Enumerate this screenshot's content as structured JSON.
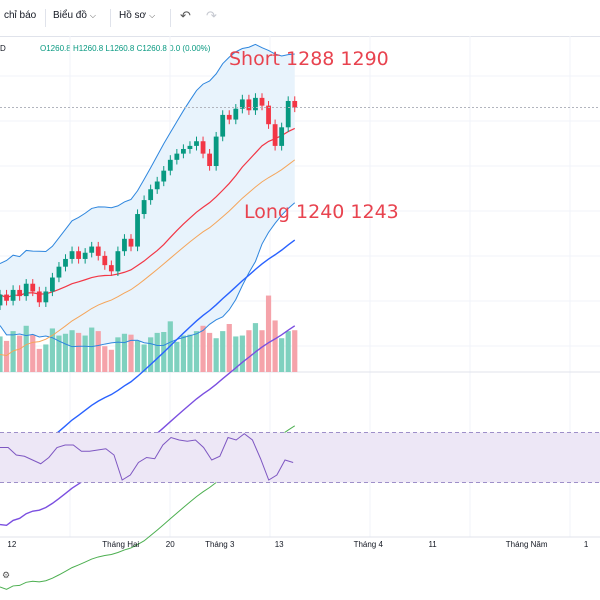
{
  "toolbar": {
    "indicators_label": "chỉ báo",
    "chart_label": "Biểu đồ",
    "profile_label": "Hồ sơ",
    "undo_icon": "undo-icon",
    "redo_icon": "redo-icon"
  },
  "legend": {
    "left_marker": "D",
    "open": "O1260.8",
    "high": "H1260.8",
    "low": "L1260.8",
    "close": "C1260.8",
    "change": "0.0 (0.00%)"
  },
  "annotations": {
    "short": "Short 1288 1290",
    "long": "Long 1240 1243"
  },
  "colors": {
    "up": "#089981",
    "down": "#f23645",
    "ma_red": "#f23645",
    "ma_orange": "#f5a55a",
    "ma_blue": "#2962ff",
    "ma_purple": "#7b4fe0",
    "ma_green": "#4caf50",
    "bollinger": "#2e86de",
    "bollinger_fill": "#e8f3fc",
    "rsi_line": "#7e57c2",
    "rsi_band": "#ede7f6"
  },
  "chart_data": {
    "type": "candlestick",
    "candles": [
      {
        "o": 1133,
        "c": 1140
      },
      {
        "o": 1140,
        "c": 1136
      },
      {
        "o": 1136,
        "c": 1143
      },
      {
        "o": 1143,
        "c": 1139
      },
      {
        "o": 1139,
        "c": 1147
      },
      {
        "o": 1147,
        "c": 1142
      },
      {
        "o": 1142,
        "c": 1135
      },
      {
        "o": 1135,
        "c": 1142
      },
      {
        "o": 1142,
        "c": 1151
      },
      {
        "o": 1151,
        "c": 1158
      },
      {
        "o": 1158,
        "c": 1163
      },
      {
        "o": 1163,
        "c": 1168
      },
      {
        "o": 1168,
        "c": 1163
      },
      {
        "o": 1163,
        "c": 1167
      },
      {
        "o": 1167,
        "c": 1171
      },
      {
        "o": 1171,
        "c": 1165
      },
      {
        "o": 1165,
        "c": 1159
      },
      {
        "o": 1159,
        "c": 1155
      },
      {
        "o": 1155,
        "c": 1168
      },
      {
        "o": 1168,
        "c": 1176
      },
      {
        "o": 1176,
        "c": 1171
      },
      {
        "o": 1171,
        "c": 1192
      },
      {
        "o": 1192,
        "c": 1201
      },
      {
        "o": 1201,
        "c": 1208
      },
      {
        "o": 1208,
        "c": 1213
      },
      {
        "o": 1213,
        "c": 1220
      },
      {
        "o": 1220,
        "c": 1227
      },
      {
        "o": 1227,
        "c": 1231
      },
      {
        "o": 1231,
        "c": 1234
      },
      {
        "o": 1234,
        "c": 1236
      },
      {
        "o": 1236,
        "c": 1239
      },
      {
        "o": 1239,
        "c": 1231
      },
      {
        "o": 1231,
        "c": 1223
      },
      {
        "o": 1223,
        "c": 1242
      },
      {
        "o": 1242,
        "c": 1256
      },
      {
        "o": 1256,
        "c": 1253
      },
      {
        "o": 1253,
        "c": 1260
      },
      {
        "o": 1260,
        "c": 1266
      },
      {
        "o": 1266,
        "c": 1259
      },
      {
        "o": 1259,
        "c": 1267
      },
      {
        "o": 1267,
        "c": 1262
      },
      {
        "o": 1262,
        "c": 1250
      },
      {
        "o": 1250,
        "c": 1236
      },
      {
        "o": 1236,
        "c": 1248
      },
      {
        "o": 1248,
        "c": 1265
      },
      {
        "o": 1265,
        "c": 1260.8
      }
    ],
    "volume": [
      40,
      35,
      46,
      41,
      52,
      42,
      26,
      31,
      49,
      41,
      43,
      47,
      44,
      41,
      50,
      46,
      29,
      25,
      39,
      43,
      42,
      35,
      31,
      39,
      44,
      45,
      57,
      34,
      41,
      42,
      46,
      52,
      44,
      38,
      46,
      54,
      40,
      41,
      47,
      55,
      47,
      86,
      58,
      38,
      46,
      47
    ],
    "rsi": [
      58,
      58,
      52,
      51,
      48,
      45,
      50,
      58,
      60,
      60,
      55,
      55,
      56,
      57,
      52,
      32,
      36,
      46,
      50,
      49,
      60,
      66,
      64,
      63,
      64,
      58,
      48,
      51,
      66,
      64,
      69,
      64,
      49,
      32,
      36,
      48,
      46
    ],
    "xticks": [
      {
        "label": "12",
        "i": 3
      },
      {
        "label": "Tháng Hai",
        "i": 25
      },
      {
        "label": "20",
        "i": 35
      },
      {
        "label": "Tháng 3",
        "i": 45
      },
      {
        "label": "13",
        "i": 57
      },
      {
        "label": "Tháng 4",
        "i": 75
      },
      {
        "label": "11",
        "i": 88
      },
      {
        "label": "Tháng Năm",
        "i": 107
      },
      {
        "label": "1",
        "i": 119
      }
    ]
  }
}
